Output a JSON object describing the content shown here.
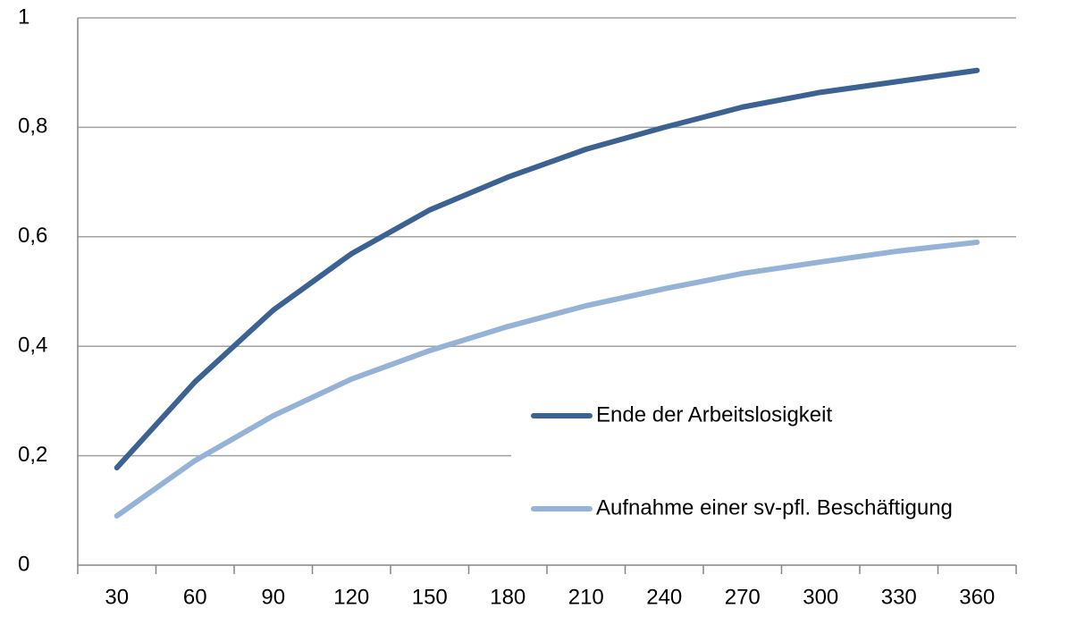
{
  "chart_data": {
    "type": "line",
    "categories": [
      "30",
      "60",
      "90",
      "120",
      "150",
      "180",
      "210",
      "240",
      "270",
      "300",
      "330",
      "360"
    ],
    "series": [
      {
        "name": "Ende der Arbeitslosigkeit",
        "color": "#3b6292",
        "values": [
          0.178,
          0.335,
          0.466,
          0.569,
          0.649,
          0.709,
          0.76,
          0.8,
          0.837,
          0.864,
          0.884,
          0.904
        ]
      },
      {
        "name": "Aufnahme einer sv-pfl. Beschäftigung",
        "color": "#95b3d7",
        "values": [
          0.09,
          0.191,
          0.273,
          0.34,
          0.392,
          0.436,
          0.474,
          0.505,
          0.533,
          0.554,
          0.574,
          0.59
        ]
      }
    ],
    "ylim": [
      0,
      1
    ],
    "yticks": [
      0,
      {
        "value": 0.2,
        "label": "0,2"
      },
      {
        "value": 0.4,
        "label": "0,4"
      },
      {
        "value": 0.6,
        "label": "0,6"
      },
      {
        "value": 0.8,
        "label": "0,8"
      },
      1
    ],
    "grid": true,
    "legend": "lower right"
  }
}
